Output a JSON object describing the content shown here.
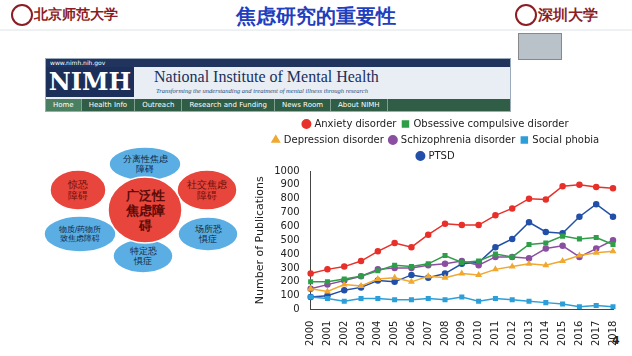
{
  "header": {
    "left_logo": "北京师范大学",
    "title": "焦虑研究的重要性",
    "right_logo": "深圳大学"
  },
  "banner": {
    "url": "www.nimh.nih.gov",
    "logo": "NIMH",
    "name": "National Institute of Mental Health",
    "tagline": "Transforming the understanding and treatment of mental illness through research",
    "nav": [
      "Home",
      "Health Info",
      "Outreach",
      "Research and Funding",
      "News Room",
      "About NIMH"
    ]
  },
  "diagram": {
    "center": {
      "label": "广泛性焦虑障碍",
      "color": "#e8453c"
    },
    "nodes": [
      {
        "label": "分离性焦虑障碍",
        "color": "#5aaee3"
      },
      {
        "label": "社交焦虑障碍",
        "color": "#e8453c"
      },
      {
        "label": "场所恐惧症",
        "color": "#5aaee3"
      },
      {
        "label": "特定恐惧症",
        "color": "#5aaee3"
      },
      {
        "label": "物质/药物所致焦虑障碍",
        "color": "#5aaee3"
      },
      {
        "label": "惊恐障碍",
        "color": "#e8453c"
      }
    ]
  },
  "page_number": "4",
  "chart_data": {
    "type": "line",
    "y_label": "Number of Publications",
    "categories": [
      "2000",
      "2001",
      "2002",
      "2003",
      "2004",
      "2005",
      "2006",
      "2007",
      "2008",
      "2009",
      "2010",
      "2011",
      "2012",
      "2013",
      "2014",
      "2015",
      "2016",
      "2017",
      "2018"
    ],
    "series": [
      {
        "name": "Anxiety disorder",
        "color": "#e8302a",
        "marker": "circle",
        "values": [
          260,
          290,
          310,
          350,
          420,
          480,
          450,
          540,
          620,
          610,
          610,
          680,
          730,
          800,
          795,
          890,
          900,
          885,
          875
        ]
      },
      {
        "name": "Obsessive compulsive disorder",
        "color": "#2e9e48",
        "marker": "square",
        "values": [
          200,
          200,
          220,
          240,
          280,
          320,
          310,
          330,
          390,
          340,
          350,
          400,
          380,
          470,
          480,
          530,
          510,
          520,
          470
        ]
      },
      {
        "name": "Depression disorder",
        "color": "#f0a830",
        "marker": "triangle",
        "values": [
          150,
          130,
          180,
          170,
          220,
          230,
          200,
          240,
          230,
          260,
          250,
          290,
          310,
          330,
          320,
          350,
          390,
          410,
          420
        ]
      },
      {
        "name": "Schizophrenia disorder",
        "color": "#8a4fa0",
        "marker": "circle",
        "values": [
          150,
          180,
          210,
          240,
          290,
          300,
          300,
          320,
          330,
          350,
          320,
          380,
          380,
          370,
          440,
          460,
          380,
          440,
          500
        ]
      },
      {
        "name": "Social phobia",
        "color": "#2d9fd8",
        "marker": "square",
        "values": [
          90,
          80,
          60,
          80,
          80,
          70,
          70,
          80,
          70,
          90,
          60,
          80,
          70,
          60,
          50,
          40,
          20,
          30,
          20
        ]
      },
      {
        "name": "PTSD",
        "color": "#2250a8",
        "marker": "circle",
        "values": [
          90,
          100,
          140,
          160,
          210,
          200,
          250,
          230,
          260,
          330,
          340,
          450,
          510,
          630,
          560,
          550,
          670,
          760,
          670
        ]
      }
    ],
    "ylim": [
      0,
      1000
    ],
    "yticks": [
      0,
      100,
      200,
      300,
      400,
      500,
      600,
      700,
      800,
      900,
      1000
    ],
    "grid": false,
    "legend": "top"
  }
}
